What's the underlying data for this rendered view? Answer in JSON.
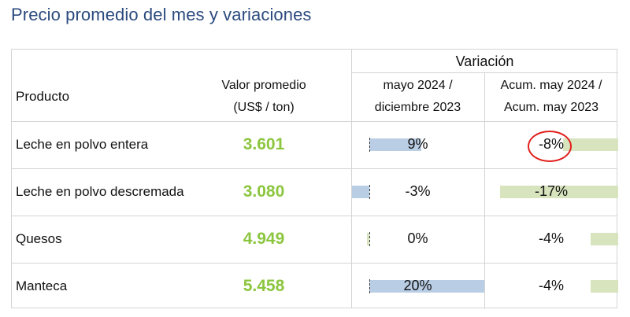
{
  "title": "Precio promedio del mes y variaciones",
  "colors": {
    "title": "#2b4a7e",
    "value": "#8cc63f",
    "bar_monthly": "#b9cde5",
    "bar_accum": "#d7e4bd",
    "circle": "#e0201b"
  },
  "header": {
    "group_variacion": "Variación",
    "producto": "Producto",
    "valor_line1": "Valor promedio",
    "valor_line2": "(US$ / ton)",
    "monthly_line1": "mayo 2024 /",
    "monthly_line2": "diciembre 2023",
    "accum_line1": "Acum. may 2024 /",
    "accum_line2": "Acum. may 2023"
  },
  "rows": [
    {
      "producto": "Leche en polvo entera",
      "valor": "3.601",
      "monthly": "9%",
      "monthly_value": 9,
      "accum": "-8%",
      "accum_value": -8
    },
    {
      "producto": "Leche en polvo descremada",
      "valor": "3.080",
      "monthly": "-3%",
      "monthly_value": -3,
      "accum": "-17%",
      "accum_value": -17
    },
    {
      "producto": "Quesos",
      "valor": "4.949",
      "monthly": "0%",
      "monthly_value": 0,
      "accum": "-4%",
      "accum_value": -4
    },
    {
      "producto": "Manteca",
      "valor": "5.458",
      "monthly": "20%",
      "monthly_value": 20,
      "accum": "-4%",
      "accum_value": -4
    }
  ],
  "highlight": {
    "row": 0,
    "column": "accum",
    "shape": "circle"
  }
}
